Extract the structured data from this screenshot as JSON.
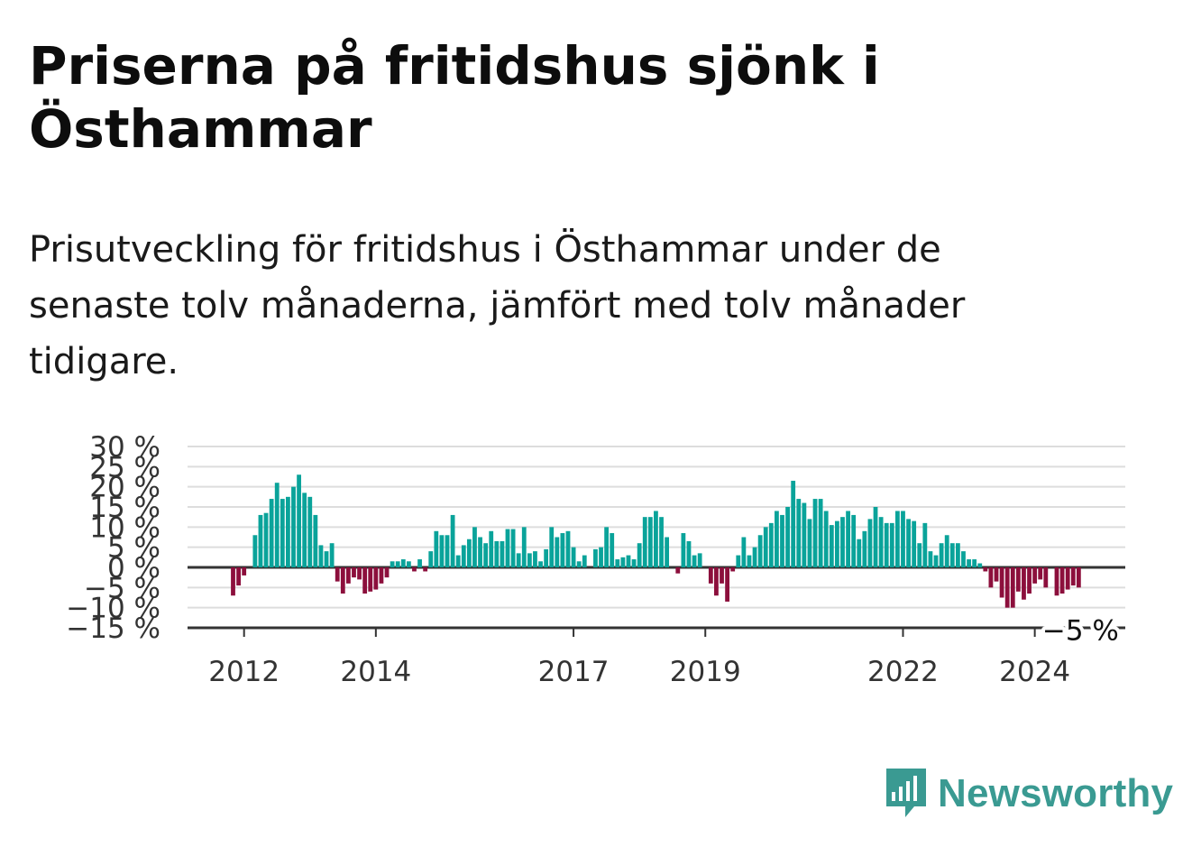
{
  "title": "Priserna på fritidshus sjönk i Östhammar",
  "subtitle": "Prisutveckling för fritidshus i Östhammar under de senaste tolv månaderna, jämfört med tolv månader tidigare.",
  "brand": {
    "name": "Newsworthy",
    "color": "#3a9a92",
    "icon": "newsworthy-logo-icon"
  },
  "colors": {
    "positive": "#0aa39a",
    "negative": "#8c0f3c",
    "grid": "#dddddd",
    "zero_line": "#333333"
  },
  "chart_data": {
    "type": "bar",
    "ylim": [
      -15,
      30
    ],
    "ytick_values": [
      -15,
      -10,
      -5,
      0,
      5,
      10,
      15,
      20,
      25,
      30
    ],
    "ytick_labels": [
      "−15 %",
      "−10 %",
      "−5 %",
      "0 %",
      "5 %",
      "10 %",
      "15 %",
      "20 %",
      "25 %",
      "30 %"
    ],
    "x_start": "2011-11",
    "xtick_labels": [
      {
        "label": "2012",
        "index": 2
      },
      {
        "label": "2014",
        "index": 26
      },
      {
        "label": "2017",
        "index": 62
      },
      {
        "label": "2019",
        "index": 86
      },
      {
        "label": "2022",
        "index": 122
      },
      {
        "label": "2024",
        "index": 146
      }
    ],
    "last_value_label": "−5 %",
    "values": [
      -7,
      -4.5,
      -2,
      0,
      8,
      13,
      13.5,
      17,
      21,
      17,
      17.5,
      20,
      23,
      18.5,
      17.5,
      13,
      5.5,
      4,
      6,
      -3.5,
      -6.5,
      -4,
      -2.5,
      -3,
      -6.5,
      -6,
      -5.5,
      -4,
      -2.5,
      1.5,
      1.5,
      2,
      1.5,
      -1,
      2,
      -1,
      4,
      9,
      8,
      8,
      13,
      3,
      5.5,
      7,
      10,
      7.5,
      6,
      9,
      6.5,
      6.5,
      9.5,
      9.5,
      3.5,
      10,
      3.5,
      4,
      1.5,
      4.5,
      10,
      7.5,
      8.5,
      9,
      5,
      1.5,
      3,
      0,
      4.5,
      5,
      10,
      8.5,
      2,
      2.5,
      3,
      2,
      6,
      12.5,
      12.5,
      14,
      12.5,
      7.5,
      0,
      -1.5,
      8.5,
      6.5,
      3,
      3.5,
      0,
      -4,
      -7,
      -4,
      -8.5,
      -1,
      3,
      7.5,
      3,
      5,
      8,
      10,
      11,
      14,
      13,
      15,
      21.5,
      17,
      16,
      12,
      17,
      17,
      14,
      10.5,
      11.5,
      12.5,
      14,
      13,
      7,
      9,
      12,
      15,
      12.5,
      11,
      11,
      14,
      14,
      12,
      11.5,
      6,
      11,
      4,
      3,
      6,
      8,
      6,
      6,
      4,
      2,
      2,
      1,
      -1,
      -5,
      -3.5,
      -7.5,
      -10,
      -10,
      -6,
      -8,
      -6.5,
      -4,
      -3,
      -5,
      0,
      -7,
      -6.5,
      -5.5,
      -4.5,
      -5
    ]
  }
}
